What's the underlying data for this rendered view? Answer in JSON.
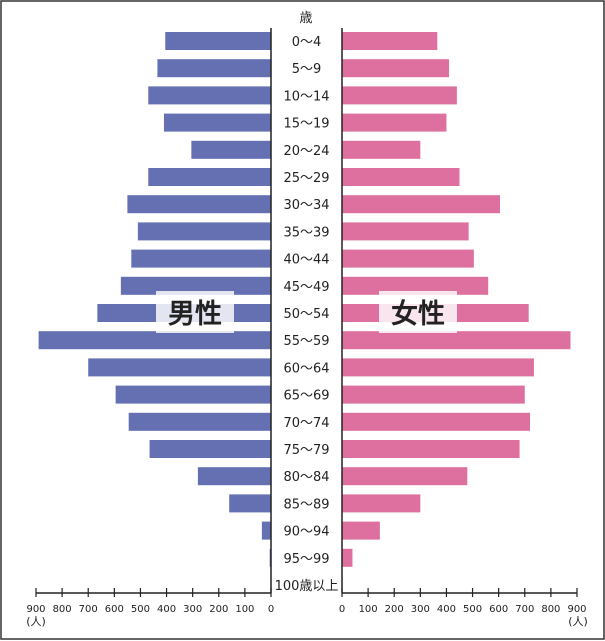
{
  "chart_data": {
    "type": "bar",
    "orientation": "horizontal-butterfly",
    "age_unit": "歳",
    "categories": [
      "0〜4",
      "5〜9",
      "10〜14",
      "15〜19",
      "20〜24",
      "25〜29",
      "30〜34",
      "35〜39",
      "40〜44",
      "45〜49",
      "50〜54",
      "55〜59",
      "60〜64",
      "65〜69",
      "70〜74",
      "75〜79",
      "80〜84",
      "85〜89",
      "90〜94",
      "95〜99",
      "100歳以上"
    ],
    "series": [
      {
        "name": "男性",
        "values": [
          405,
          435,
          470,
          410,
          305,
          470,
          550,
          510,
          535,
          575,
          665,
          890,
          700,
          595,
          545,
          465,
          280,
          160,
          35,
          5,
          0
        ]
      },
      {
        "name": "女性",
        "values": [
          365,
          410,
          440,
          400,
          300,
          450,
          605,
          485,
          505,
          560,
          715,
          875,
          735,
          700,
          720,
          680,
          480,
          300,
          145,
          40,
          2
        ]
      }
    ],
    "xlim": [
      0,
      900
    ],
    "ticks": [
      "900",
      "800",
      "700",
      "600",
      "500",
      "400",
      "300",
      "200",
      "100",
      "0"
    ],
    "ticks_right": [
      "0",
      "100",
      "200",
      "300",
      "400",
      "500",
      "600",
      "700",
      "800",
      "900"
    ],
    "unit_label": "(人)",
    "colors": {
      "male": "#6470b2",
      "female": "#de70a0",
      "frame": "#333333"
    },
    "grid": false
  }
}
